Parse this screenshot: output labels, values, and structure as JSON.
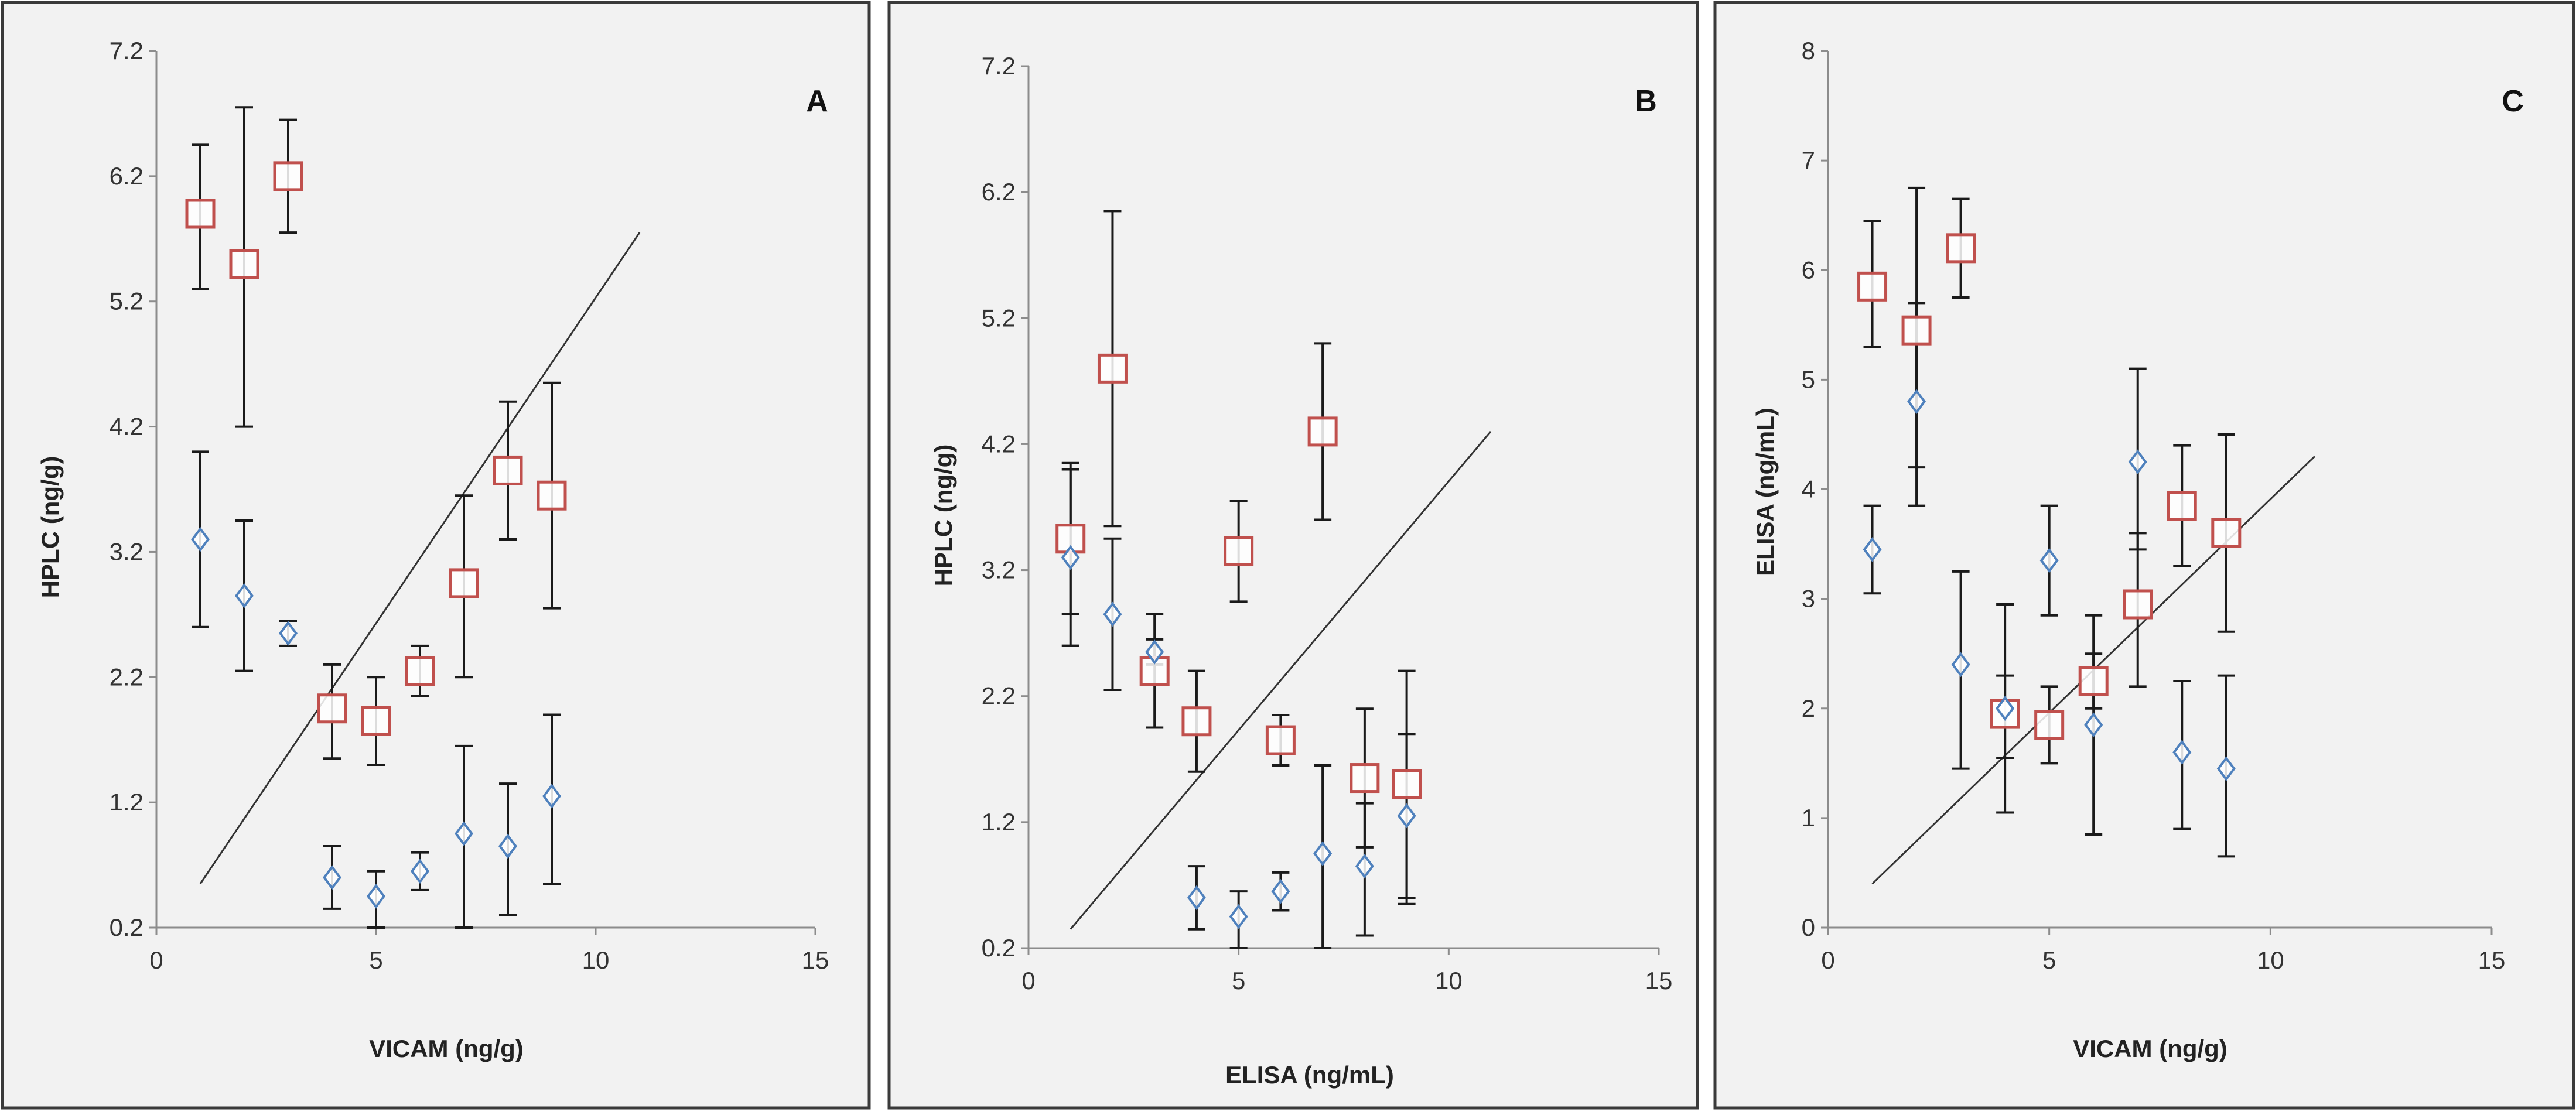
{
  "colors": {
    "panel_background": "#f2f2f2",
    "square_marker": "#c0504d",
    "diamond_marker": "#4f81bd",
    "error_bar": "#1a1a1a",
    "trend_line": "#333333"
  },
  "chart_data": [
    {
      "type": "scatter",
      "panel_label": "A",
      "xlabel": "VICAM (ng/g)",
      "ylabel": "HPLC (ng/g)",
      "xlim": [
        0,
        15
      ],
      "ylim": [
        0.2,
        7.2
      ],
      "x_ticks": [
        "0",
        "5",
        "10",
        "15"
      ],
      "y_ticks": [
        "0.2",
        "1.2",
        "2.2",
        "3.2",
        "4.2",
        "5.2",
        "6.2",
        "7.2"
      ],
      "series": [
        {
          "name": "squares",
          "marker": "square",
          "points": [
            {
              "x": 1,
              "y": 5.9,
              "lo": 5.3,
              "hi": 6.45
            },
            {
              "x": 2,
              "y": 5.5,
              "lo": 4.2,
              "hi": 6.75
            },
            {
              "x": 3,
              "y": 6.2,
              "lo": 5.75,
              "hi": 6.65
            },
            {
              "x": 4,
              "y": 1.95,
              "lo": 1.55,
              "hi": 2.3
            },
            {
              "x": 5,
              "y": 1.85,
              "lo": 1.5,
              "hi": 2.2
            },
            {
              "x": 6,
              "y": 2.25,
              "lo": 2.05,
              "hi": 2.45
            },
            {
              "x": 7,
              "y": 2.95,
              "lo": 2.2,
              "hi": 3.65
            },
            {
              "x": 8,
              "y": 3.85,
              "lo": 3.3,
              "hi": 4.4
            },
            {
              "x": 9,
              "y": 3.65,
              "lo": 2.75,
              "hi": 4.55
            }
          ]
        },
        {
          "name": "diamonds",
          "marker": "diamond",
          "points": [
            {
              "x": 1,
              "y": 3.3,
              "lo": 2.6,
              "hi": 4.0
            },
            {
              "x": 2,
              "y": 2.85,
              "lo": 2.25,
              "hi": 3.45
            },
            {
              "x": 3,
              "y": 2.55,
              "lo": 2.45,
              "hi": 2.65
            },
            {
              "x": 4,
              "y": 0.6,
              "lo": 0.35,
              "hi": 0.85
            },
            {
              "x": 5,
              "y": 0.45,
              "lo": 0.2,
              "hi": 0.65
            },
            {
              "x": 6,
              "y": 0.65,
              "lo": 0.5,
              "hi": 0.8
            },
            {
              "x": 7,
              "y": 0.95,
              "lo": 0.2,
              "hi": 1.65
            },
            {
              "x": 8,
              "y": 0.85,
              "lo": 0.3,
              "hi": 1.35
            },
            {
              "x": 9,
              "y": 1.25,
              "lo": 0.55,
              "hi": 1.9
            }
          ]
        }
      ],
      "trend_line": {
        "x1": 1,
        "y1": 0.55,
        "x2": 11,
        "y2": 5.75
      }
    },
    {
      "type": "scatter",
      "panel_label": "B",
      "xlabel": "ELISA (ng/mL)",
      "ylabel": "HPLC (ng/g)",
      "xlim": [
        0,
        15
      ],
      "ylim": [
        0.2,
        7.2
      ],
      "x_ticks": [
        "0",
        "5",
        "10",
        "15"
      ],
      "y_ticks": [
        "0.2",
        "1.2",
        "2.2",
        "3.2",
        "4.2",
        "5.2",
        "6.2",
        "7.2"
      ],
      "series": [
        {
          "name": "squares",
          "marker": "square",
          "points": [
            {
              "x": 1,
              "y": 3.45,
              "lo": 2.85,
              "hi": 4.05
            },
            {
              "x": 2,
              "y": 4.8,
              "lo": 3.55,
              "hi": 6.05
            },
            {
              "x": 3,
              "y": 2.4,
              "lo": 1.95,
              "hi": 2.85
            },
            {
              "x": 4,
              "y": 2.0,
              "lo": 1.6,
              "hi": 2.4
            },
            {
              "x": 5,
              "y": 3.35,
              "lo": 2.95,
              "hi": 3.75
            },
            {
              "x": 6,
              "y": 1.85,
              "lo": 1.65,
              "hi": 2.05
            },
            {
              "x": 7,
              "y": 4.3,
              "lo": 3.6,
              "hi": 5.0
            },
            {
              "x": 8,
              "y": 1.55,
              "lo": 1.0,
              "hi": 2.1
            },
            {
              "x": 9,
              "y": 1.5,
              "lo": 0.6,
              "hi": 2.4
            }
          ]
        },
        {
          "name": "diamonds",
          "marker": "diamond",
          "points": [
            {
              "x": 1,
              "y": 3.3,
              "lo": 2.6,
              "hi": 4.0
            },
            {
              "x": 2,
              "y": 2.85,
              "lo": 2.25,
              "hi": 3.45
            },
            {
              "x": 3,
              "y": 2.55,
              "lo": 2.45,
              "hi": 2.65
            },
            {
              "x": 4,
              "y": 0.6,
              "lo": 0.35,
              "hi": 0.85
            },
            {
              "x": 5,
              "y": 0.45,
              "lo": 0.2,
              "hi": 0.65
            },
            {
              "x": 6,
              "y": 0.65,
              "lo": 0.5,
              "hi": 0.8
            },
            {
              "x": 7,
              "y": 0.95,
              "lo": 0.2,
              "hi": 1.65
            },
            {
              "x": 8,
              "y": 0.85,
              "lo": 0.3,
              "hi": 1.35
            },
            {
              "x": 9,
              "y": 1.25,
              "lo": 0.55,
              "hi": 1.9
            }
          ]
        }
      ],
      "trend_line": {
        "x1": 1,
        "y1": 0.35,
        "x2": 11,
        "y2": 4.3
      }
    },
    {
      "type": "scatter",
      "panel_label": "C",
      "xlabel": "VICAM (ng/g)",
      "ylabel": "ELISA (ng/mL)",
      "xlim": [
        0,
        15
      ],
      "ylim": [
        0,
        8
      ],
      "x_ticks": [
        "0",
        "5",
        "10",
        "15"
      ],
      "y_ticks": [
        "0",
        "1",
        "2",
        "3",
        "4",
        "5",
        "6",
        "7",
        "8"
      ],
      "series": [
        {
          "name": "squares",
          "marker": "square",
          "points": [
            {
              "x": 1,
              "y": 5.85,
              "lo": 5.3,
              "hi": 6.45
            },
            {
              "x": 2,
              "y": 5.45,
              "lo": 4.2,
              "hi": 6.75
            },
            {
              "x": 3,
              "y": 6.2,
              "lo": 5.75,
              "hi": 6.65
            },
            {
              "x": 4,
              "y": 1.95,
              "lo": 1.55,
              "hi": 2.3
            },
            {
              "x": 5,
              "y": 1.85,
              "lo": 1.5,
              "hi": 2.2
            },
            {
              "x": 6,
              "y": 2.25,
              "lo": 2.0,
              "hi": 2.5
            },
            {
              "x": 7,
              "y": 2.95,
              "lo": 2.2,
              "hi": 3.6
            },
            {
              "x": 8,
              "y": 3.85,
              "lo": 3.3,
              "hi": 4.4
            },
            {
              "x": 9,
              "y": 3.6,
              "lo": 2.7,
              "hi": 4.5
            }
          ]
        },
        {
          "name": "diamonds",
          "marker": "diamond",
          "points": [
            {
              "x": 1,
              "y": 3.45,
              "lo": 3.05,
              "hi": 3.85
            },
            {
              "x": 2,
              "y": 4.8,
              "lo": 3.85,
              "hi": 5.7
            },
            {
              "x": 3,
              "y": 2.4,
              "lo": 1.45,
              "hi": 3.25
            },
            {
              "x": 4,
              "y": 2.0,
              "lo": 1.05,
              "hi": 2.95
            },
            {
              "x": 5,
              "y": 3.35,
              "lo": 2.85,
              "hi": 3.85
            },
            {
              "x": 6,
              "y": 1.85,
              "lo": 0.85,
              "hi": 2.85
            },
            {
              "x": 7,
              "y": 4.25,
              "lo": 3.45,
              "hi": 5.1
            },
            {
              "x": 8,
              "y": 1.6,
              "lo": 0.9,
              "hi": 2.25
            },
            {
              "x": 9,
              "y": 1.45,
              "lo": 0.65,
              "hi": 2.3
            }
          ]
        }
      ],
      "trend_line": {
        "x1": 1,
        "y1": 0.4,
        "x2": 11,
        "y2": 4.3
      }
    }
  ]
}
